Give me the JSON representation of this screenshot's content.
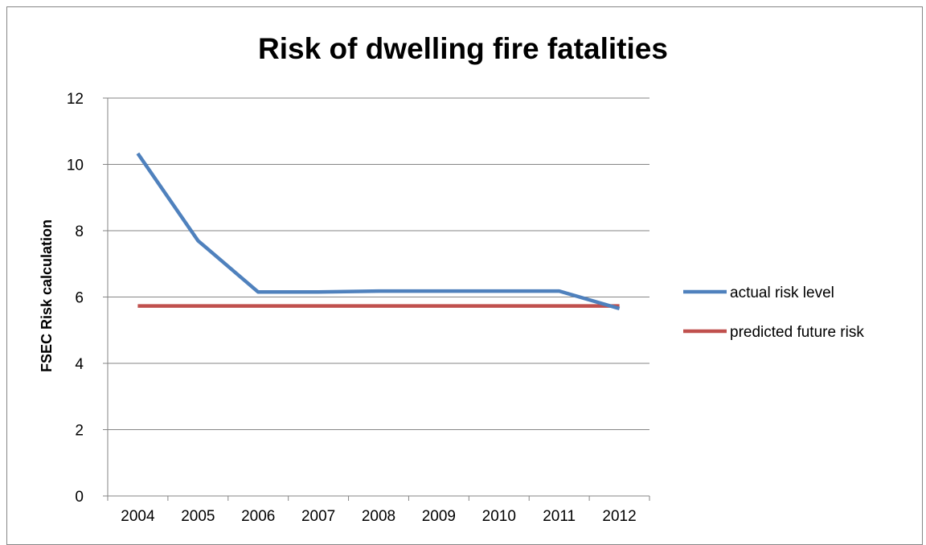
{
  "chart_data": {
    "type": "line",
    "title": "Risk of dwelling fire fatalities",
    "xlabel": "",
    "ylabel": "FSEC Risk calculation",
    "categories": [
      "2004",
      "2005",
      "2006",
      "2007",
      "2008",
      "2009",
      "2010",
      "2011",
      "2012"
    ],
    "ylim": [
      0,
      12
    ],
    "yticks": [
      "0",
      "2",
      "4",
      "6",
      "8",
      "10",
      "12"
    ],
    "grid": true,
    "legend_position": "right",
    "series": [
      {
        "name": "actual risk level",
        "color": "#4F81BD",
        "values": [
          10.33,
          7.7,
          6.15,
          6.15,
          6.18,
          6.18,
          6.18,
          6.18,
          5.65
        ]
      },
      {
        "name": "predicted future risk",
        "color": "#C0504D",
        "values": [
          5.73,
          5.73,
          5.73,
          5.73,
          5.73,
          5.73,
          5.73,
          5.73,
          5.73
        ]
      }
    ]
  }
}
